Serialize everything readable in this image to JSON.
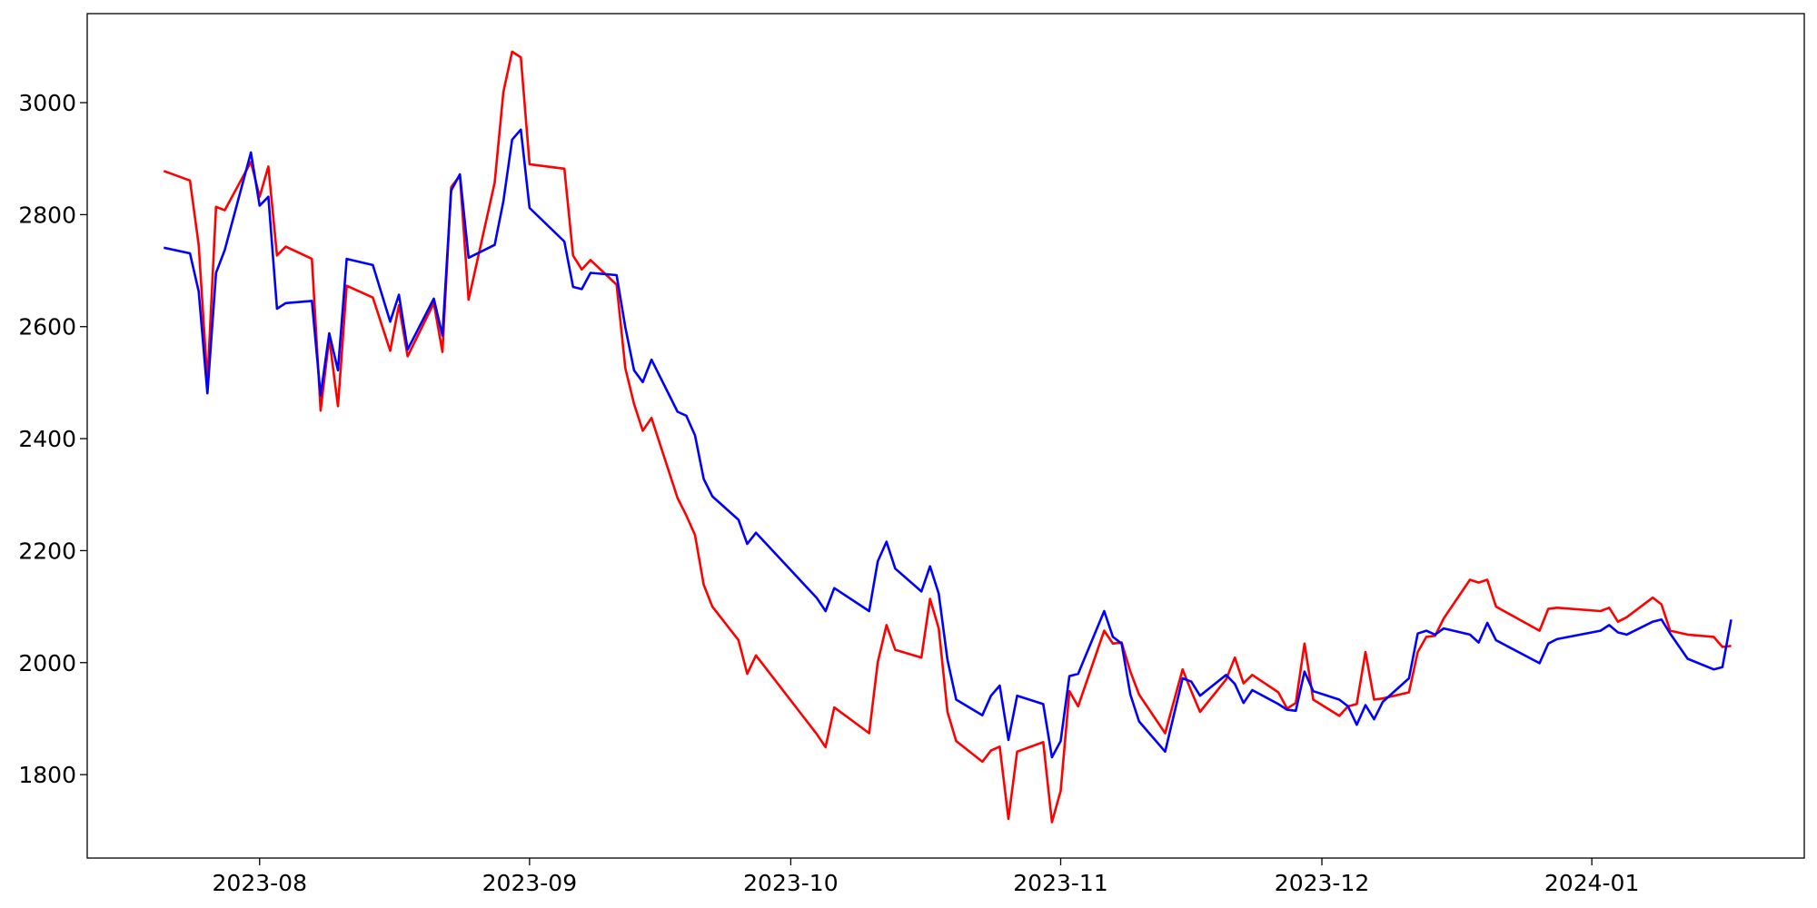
{
  "chart_data": {
    "type": "line",
    "x": [
      20,
      23,
      24,
      25,
      26,
      27,
      30,
      31,
      32,
      33,
      34,
      37,
      38,
      39,
      40,
      41,
      44,
      46,
      47,
      48,
      51,
      52,
      53,
      54,
      55,
      58,
      59,
      60,
      61,
      62,
      66,
      67,
      68,
      69,
      72,
      73,
      74,
      75,
      76,
      79,
      80,
      81,
      82,
      83,
      86,
      87,
      88,
      95,
      96,
      97,
      101,
      102,
      103,
      104,
      107,
      108,
      109,
      110,
      111,
      114,
      115,
      116,
      117,
      118,
      121,
      122,
      123,
      124,
      125,
      128,
      129,
      130,
      131,
      132,
      135,
      137,
      138,
      139,
      142,
      143,
      144,
      145,
      148,
      149,
      150,
      151,
      152,
      155,
      156,
      157,
      158,
      159,
      160,
      163,
      164,
      165,
      166,
      167,
      170,
      171,
      172,
      173,
      178,
      179,
      180,
      185,
      186,
      187,
      188,
      191,
      192,
      193,
      195,
      198,
      199,
      200
    ],
    "series": [
      {
        "color": "#ff0000",
        "values": [
          2878,
          2861,
          2746,
          2501,
          2814,
          2808,
          2894,
          2832,
          2886,
          2727,
          2743,
          2721,
          2450,
          2580,
          2458,
          2673,
          2652,
          2557,
          2638,
          2547,
          2642,
          2555,
          2849,
          2870,
          2648,
          2857,
          3019,
          3091,
          3081,
          2890,
          2882,
          2727,
          2702,
          2719,
          2675,
          2526,
          2462,
          2414,
          2437,
          2294,
          2263,
          2228,
          2139,
          2100,
          2040,
          1980,
          2013,
          1872,
          1849,
          1920,
          1874,
          2001,
          2067,
          2023,
          2009,
          2114,
          2061,
          1912,
          1860,
          1823,
          1843,
          1850,
          1721,
          1841,
          1858,
          1715,
          1771,
          1949,
          1922,
          2057,
          2034,
          2036,
          1984,
          1943,
          1874,
          1988,
          1949,
          1912,
          1970,
          2009,
          1963,
          1978,
          1947,
          1918,
          1928,
          2034,
          1934,
          1905,
          1922,
          1926,
          2019,
          1934,
          1936,
          1947,
          2019,
          2046,
          2048,
          2079,
          2148,
          2143,
          2148,
          2100,
          2057,
          2096,
          2098,
          2092,
          2098,
          2073,
          2081,
          2116,
          2104,
          2057,
          2050,
          2046,
          2028,
          2030
        ]
      },
      {
        "color": "#0000ff",
        "values": [
          2741,
          2731,
          2663,
          2481,
          2696,
          2737,
          2911,
          2816,
          2832,
          2632,
          2642,
          2646,
          2477,
          2588,
          2522,
          2721,
          2710,
          2609,
          2657,
          2559,
          2650,
          2584,
          2843,
          2872,
          2723,
          2746,
          2824,
          2934,
          2952,
          2812,
          2752,
          2671,
          2667,
          2696,
          2692,
          2599,
          2522,
          2501,
          2541,
          2448,
          2441,
          2406,
          2328,
          2297,
          2255,
          2212,
          2232,
          2115,
          2092,
          2133,
          2092,
          2181,
          2216,
          2168,
          2127,
          2172,
          2123,
          2005,
          1934,
          1906,
          1941,
          1959,
          1862,
          1941,
          1926,
          1831,
          1860,
          1976,
          1980,
          2092,
          2046,
          2034,
          1943,
          1895,
          1841,
          1972,
          1966,
          1941,
          1978,
          1962,
          1928,
          1951,
          1926,
          1916,
          1914,
          1984,
          1949,
          1934,
          1922,
          1889,
          1924,
          1899,
          1930,
          1972,
          2052,
          2057,
          2050,
          2061,
          2050,
          2036,
          2071,
          2040,
          1999,
          2034,
          2042,
          2057,
          2067,
          2054,
          2050,
          2073,
          2077,
          2052,
          2007,
          1988,
          1992,
          2077
        ]
      }
    ],
    "xlim": [
      11.2,
      208.4
    ],
    "xticks": [
      {
        "value": 31,
        "label": "2023-08"
      },
      {
        "value": 62,
        "label": "2023-09"
      },
      {
        "value": 92,
        "label": "2023-10"
      },
      {
        "value": 123,
        "label": "2023-11"
      },
      {
        "value": 153,
        "label": "2023-12"
      },
      {
        "value": 184,
        "label": "2024-01"
      }
    ],
    "ylim": [
      1651,
      3159
    ],
    "yticks": [
      1800,
      2000,
      2200,
      2400,
      2600,
      2800,
      3000
    ],
    "grid": false
  }
}
